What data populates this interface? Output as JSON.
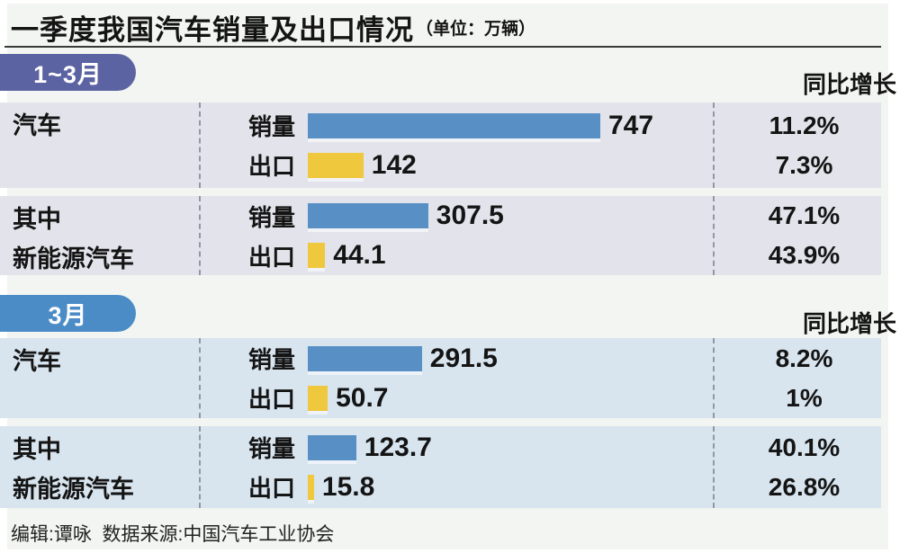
{
  "title": {
    "text": "一季度我国汽车销量及出口情况",
    "unit": "（单位：万辆）"
  },
  "colors": {
    "sales_bar": "#5890C5",
    "export_bar": "#EFC83D",
    "section1_badge": "#5C63A2",
    "section2_badge": "#4B8CC6",
    "section1_stripe": "#E3E4EB",
    "section2_stripe": "#D8E5EF"
  },
  "sections": [
    {
      "badge": "1~3月",
      "yoy_header": "同比增长",
      "groups": [
        {
          "category_lines": [
            "汽车"
          ],
          "rows": [
            {
              "label": "销量",
              "value": 747,
              "value_text": "747",
              "yoy": "11.2%"
            },
            {
              "label": "出口",
              "value": 142,
              "value_text": "142",
              "yoy": "7.3%"
            }
          ]
        },
        {
          "category_lines": [
            "其中",
            "新能源汽车"
          ],
          "rows": [
            {
              "label": "销量",
              "value": 307.5,
              "value_text": "307.5",
              "yoy": "47.1%"
            },
            {
              "label": "出口",
              "value": 44.1,
              "value_text": "44.1",
              "yoy": "43.9%"
            }
          ]
        }
      ]
    },
    {
      "badge": "3月",
      "yoy_header": "同比增长",
      "groups": [
        {
          "category_lines": [
            "汽车"
          ],
          "rows": [
            {
              "label": "销量",
              "value": 291.5,
              "value_text": "291.5",
              "yoy": "8.2%"
            },
            {
              "label": "出口",
              "value": 50.7,
              "value_text": "50.7",
              "yoy": "1%"
            }
          ]
        },
        {
          "category_lines": [
            "其中",
            "新能源汽车"
          ],
          "rows": [
            {
              "label": "销量",
              "value": 123.7,
              "value_text": "123.7",
              "yoy": "40.1%"
            },
            {
              "label": "出口",
              "value": 15.8,
              "value_text": "15.8",
              "yoy": "26.8%"
            }
          ]
        }
      ]
    }
  ],
  "footer": "编辑:谭咏  数据来源:中国汽车工业协会",
  "chart_data": {
    "type": "bar",
    "title": "一季度我国汽车销量及出口情况",
    "unit": "万辆",
    "legend": [
      {
        "name": "销量",
        "color": "#5890C5"
      },
      {
        "name": "出口",
        "color": "#EFC83D"
      }
    ],
    "value_axis_max_reference": 747,
    "sections": [
      {
        "period": "1~3月",
        "yoy_header": "同比增长",
        "rows": [
          {
            "category": "汽车",
            "metric": "销量",
            "value": 747,
            "yoy_growth": "11.2%"
          },
          {
            "category": "汽车",
            "metric": "出口",
            "value": 142,
            "yoy_growth": "7.3%"
          },
          {
            "category": "其中新能源汽车",
            "metric": "销量",
            "value": 307.5,
            "yoy_growth": "47.1%"
          },
          {
            "category": "其中新能源汽车",
            "metric": "出口",
            "value": 44.1,
            "yoy_growth": "43.9%"
          }
        ]
      },
      {
        "period": "3月",
        "yoy_header": "同比增长",
        "rows": [
          {
            "category": "汽车",
            "metric": "销量",
            "value": 291.5,
            "yoy_growth": "8.2%"
          },
          {
            "category": "汽车",
            "metric": "出口",
            "value": 50.7,
            "yoy_growth": "1%"
          },
          {
            "category": "其中新能源汽车",
            "metric": "销量",
            "value": 123.7,
            "yoy_growth": "40.1%"
          },
          {
            "category": "其中新能源汽车",
            "metric": "出口",
            "value": 15.8,
            "yoy_growth": "26.8%"
          }
        ]
      }
    ]
  }
}
